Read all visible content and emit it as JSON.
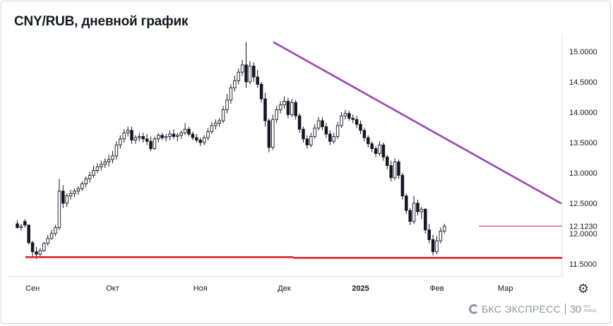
{
  "title": "CNY/RUB, дневной график",
  "brand": {
    "name": "БКС ЭКСПРЕСС",
    "anniversary_number": "30",
    "anniversary_text": "ЛЕТ ПОБЕД"
  },
  "colors": {
    "up": "#131722",
    "down": "#131722",
    "trendline": "#9c44b4",
    "support": "#e0202a",
    "level": "#e0202a"
  },
  "chart_data": {
    "type": "candlestick",
    "title": "CNY/RUB, дневной график",
    "y_axis_ticks": [
      "15.0000",
      "14.5000",
      "14.0000",
      "13.5000",
      "13.0000",
      "12.5000",
      "12.0000",
      "11.5000"
    ],
    "y_tick_values": [
      15.0,
      14.5,
      14.0,
      13.5,
      13.0,
      12.5,
      12.0,
      11.5
    ],
    "ylim": [
      11.35,
      15.25
    ],
    "x_axis_labels": [
      {
        "label": "Сен",
        "index": 4,
        "bold": false
      },
      {
        "label": "Окт",
        "index": 25,
        "bold": false
      },
      {
        "label": "Ноя",
        "index": 48,
        "bold": false
      },
      {
        "label": "Дек",
        "index": 70,
        "bold": false
      },
      {
        "label": "2025",
        "index": 90,
        "bold": true
      },
      {
        "label": "Фев",
        "index": 110,
        "bold": false
      },
      {
        "label": "Мар",
        "index": 128,
        "bold": false
      }
    ],
    "x_count": 136,
    "current_level": {
      "label": "12.1230",
      "value": 12.123,
      "start_index": 116
    },
    "trendline": {
      "from": {
        "index": 67.3,
        "value": 15.15
      },
      "to": {
        "index": 135,
        "value": 12.5
      }
    },
    "support_line": {
      "value": 11.6,
      "from_index": 0.5,
      "to_index": 135
    },
    "candles": [
      [
        12.16,
        12.22,
        12.08,
        12.1
      ],
      [
        12.1,
        12.16,
        12.05,
        12.12
      ],
      [
        12.2,
        12.24,
        12.1,
        12.14
      ],
      [
        12.14,
        12.15,
        11.82,
        11.85
      ],
      [
        11.85,
        11.88,
        11.62,
        11.7
      ],
      [
        11.7,
        11.78,
        11.58,
        11.66
      ],
      [
        11.66,
        11.76,
        11.6,
        11.72
      ],
      [
        11.72,
        11.86,
        11.7,
        11.84
      ],
      [
        11.84,
        11.98,
        11.8,
        11.92
      ],
      [
        11.92,
        12.06,
        11.9,
        12.0
      ],
      [
        12.0,
        12.14,
        11.96,
        12.1
      ],
      [
        12.1,
        12.9,
        12.06,
        12.7
      ],
      [
        12.7,
        12.8,
        12.42,
        12.5
      ],
      [
        12.5,
        12.66,
        12.44,
        12.62
      ],
      [
        12.62,
        12.72,
        12.56,
        12.66
      ],
      [
        12.66,
        12.74,
        12.6,
        12.7
      ],
      [
        12.7,
        12.78,
        12.64,
        12.74
      ],
      [
        12.74,
        12.86,
        12.7,
        12.82
      ],
      [
        12.82,
        12.94,
        12.76,
        12.9
      ],
      [
        12.9,
        13.02,
        12.84,
        12.96
      ],
      [
        12.96,
        13.12,
        12.92,
        13.04
      ],
      [
        13.04,
        13.16,
        13.0,
        13.1
      ],
      [
        13.1,
        13.2,
        13.04,
        13.14
      ],
      [
        13.14,
        13.24,
        13.08,
        13.18
      ],
      [
        13.18,
        13.3,
        13.1,
        13.22
      ],
      [
        13.22,
        13.36,
        13.16,
        13.28
      ],
      [
        13.28,
        13.52,
        13.22,
        13.46
      ],
      [
        13.46,
        13.62,
        13.4,
        13.56
      ],
      [
        13.56,
        13.72,
        13.5,
        13.66
      ],
      [
        13.66,
        13.76,
        13.6,
        13.7
      ],
      [
        13.7,
        13.76,
        13.48,
        13.54
      ],
      [
        13.54,
        13.62,
        13.48,
        13.58
      ],
      [
        13.58,
        13.66,
        13.52,
        13.6
      ],
      [
        13.6,
        13.66,
        13.5,
        13.56
      ],
      [
        13.56,
        13.64,
        13.46,
        13.52
      ],
      [
        13.52,
        13.6,
        13.36,
        13.4
      ],
      [
        13.4,
        13.6,
        13.38,
        13.56
      ],
      [
        13.56,
        13.66,
        13.5,
        13.62
      ],
      [
        13.62,
        13.66,
        13.54,
        13.58
      ],
      [
        13.58,
        13.64,
        13.52,
        13.6
      ],
      [
        13.6,
        13.7,
        13.54,
        13.64
      ],
      [
        13.64,
        13.72,
        13.56,
        13.6
      ],
      [
        13.6,
        13.66,
        13.52,
        13.62
      ],
      [
        13.62,
        13.7,
        13.56,
        13.66
      ],
      [
        13.66,
        13.82,
        13.62,
        13.72
      ],
      [
        13.72,
        13.76,
        13.6,
        13.64
      ],
      [
        13.64,
        13.68,
        13.54,
        13.58
      ],
      [
        13.58,
        13.64,
        13.5,
        13.54
      ],
      [
        13.54,
        13.58,
        13.44,
        13.5
      ],
      [
        13.5,
        13.62,
        13.46,
        13.58
      ],
      [
        13.58,
        13.74,
        13.54,
        13.68
      ],
      [
        13.68,
        13.84,
        13.64,
        13.78
      ],
      [
        13.78,
        13.88,
        13.72,
        13.82
      ],
      [
        13.82,
        13.9,
        13.76,
        13.86
      ],
      [
        13.86,
        14.1,
        13.82,
        14.04
      ],
      [
        14.04,
        14.3,
        13.98,
        14.2
      ],
      [
        14.2,
        14.46,
        14.14,
        14.4
      ],
      [
        14.4,
        14.6,
        14.34,
        14.52
      ],
      [
        14.52,
        14.72,
        14.46,
        14.66
      ],
      [
        14.66,
        14.86,
        14.6,
        14.78
      ],
      [
        14.78,
        15.16,
        14.4,
        14.5
      ],
      [
        14.5,
        14.84,
        14.46,
        14.76
      ],
      [
        14.76,
        14.82,
        14.5,
        14.58
      ],
      [
        14.58,
        14.7,
        14.4,
        14.46
      ],
      [
        14.46,
        14.5,
        14.16,
        14.22
      ],
      [
        14.22,
        14.32,
        13.76,
        13.86
      ],
      [
        13.86,
        13.9,
        13.34,
        13.42
      ],
      [
        13.42,
        13.96,
        13.38,
        13.88
      ],
      [
        13.88,
        14.1,
        13.82,
        14.04
      ],
      [
        14.04,
        14.18,
        13.98,
        14.12
      ],
      [
        14.12,
        14.26,
        14.06,
        14.18
      ],
      [
        14.18,
        14.24,
        13.9,
        13.96
      ],
      [
        13.96,
        14.22,
        13.92,
        14.16
      ],
      [
        14.16,
        14.2,
        13.88,
        13.94
      ],
      [
        13.94,
        13.98,
        13.66,
        13.72
      ],
      [
        13.72,
        13.76,
        13.5,
        13.56
      ],
      [
        13.56,
        13.62,
        13.4,
        13.46
      ],
      [
        13.46,
        13.66,
        13.42,
        13.6
      ],
      [
        13.6,
        13.8,
        13.56,
        13.74
      ],
      [
        13.74,
        13.92,
        13.7,
        13.86
      ],
      [
        13.86,
        13.92,
        13.7,
        13.76
      ],
      [
        13.76,
        13.82,
        13.58,
        13.64
      ],
      [
        13.64,
        13.7,
        13.46,
        13.52
      ],
      [
        13.52,
        13.66,
        13.48,
        13.6
      ],
      [
        13.6,
        13.84,
        13.56,
        13.78
      ],
      [
        13.78,
        14.0,
        13.74,
        13.94
      ],
      [
        13.94,
        14.04,
        13.88,
        13.98
      ],
      [
        13.98,
        14.02,
        13.86,
        13.9
      ],
      [
        13.9,
        13.96,
        13.82,
        13.88
      ],
      [
        13.88,
        13.94,
        13.74,
        13.8
      ],
      [
        13.8,
        13.86,
        13.64,
        13.7
      ],
      [
        13.7,
        13.74,
        13.52,
        13.58
      ],
      [
        13.58,
        13.62,
        13.42,
        13.48
      ],
      [
        13.48,
        13.52,
        13.34,
        13.4
      ],
      [
        13.4,
        13.44,
        13.26,
        13.32
      ],
      [
        13.32,
        13.52,
        13.28,
        13.46
      ],
      [
        13.46,
        13.5,
        13.2,
        13.26
      ],
      [
        13.26,
        13.3,
        13.06,
        13.12
      ],
      [
        13.12,
        13.2,
        12.86,
        12.92
      ],
      [
        12.92,
        13.24,
        12.88,
        13.18
      ],
      [
        13.18,
        13.22,
        12.9,
        12.96
      ],
      [
        12.96,
        13.0,
        12.56,
        12.62
      ],
      [
        12.62,
        12.66,
        12.32,
        12.38
      ],
      [
        12.38,
        12.42,
        12.14,
        12.2
      ],
      [
        12.2,
        12.62,
        12.16,
        12.5
      ],
      [
        12.5,
        12.56,
        12.3,
        12.36
      ],
      [
        12.36,
        12.44,
        12.24,
        12.4
      ],
      [
        12.4,
        12.42,
        12.0,
        12.06
      ],
      [
        12.06,
        12.16,
        11.84,
        11.9
      ],
      [
        11.9,
        11.98,
        11.64,
        11.7
      ],
      [
        11.7,
        11.96,
        11.66,
        11.88
      ],
      [
        11.88,
        12.1,
        11.84,
        12.04
      ],
      [
        12.04,
        12.16,
        12.0,
        12.12
      ]
    ]
  }
}
